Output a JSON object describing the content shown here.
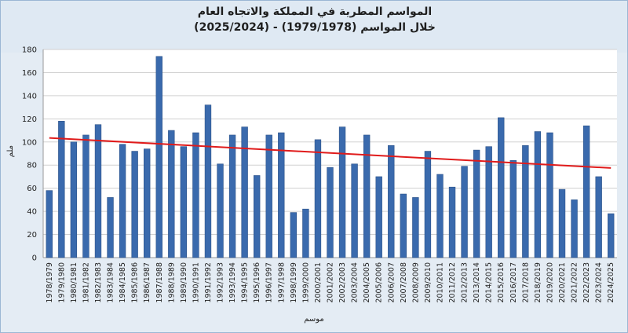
{
  "chart_data": {
    "type": "bar",
    "title": "المواسم المطرية في المملكة والاتجاه العام",
    "subtitle": "خلال المواسم (1979/1978) - (2025/2024)",
    "xlabel": "موسم",
    "ylabel": "ملم",
    "ylim": [
      0,
      180
    ],
    "yticks": [
      0,
      20,
      40,
      60,
      80,
      100,
      120,
      140,
      160,
      180
    ],
    "grid": true,
    "legend": "none",
    "colors": {
      "bar": "#3a6aad",
      "trend": "#e01b1b",
      "plot_bg": "#ffffff",
      "grid": "#d0d0d0"
    },
    "trend": {
      "start": 103.5,
      "end": 77.5
    },
    "categories": [
      "1978/1979",
      "1979/1980",
      "1980/1981",
      "1981/1982",
      "1982/1983",
      "1983/1984",
      "1984/1985",
      "1985/1986",
      "1986/1987",
      "1987/1988",
      "1988/1989",
      "1989/1990",
      "1990/1991",
      "1991/1992",
      "1992/1993",
      "1993/1994",
      "1994/1995",
      "1995/1996",
      "1996/1997",
      "1997/1998",
      "1998/1999",
      "1999/2000",
      "2000/2001",
      "2001/2002",
      "2002/2003",
      "2003/2004",
      "2004/2005",
      "2005/2006",
      "2006/2007",
      "2007/2008",
      "2008/2009",
      "2009/2010",
      "2010/2011",
      "2011/2012",
      "2012/2013",
      "2013/2014",
      "2014/2015",
      "2015/2016",
      "2016/2017",
      "2017/2018",
      "2018/2019",
      "2019/2020",
      "2020/2021",
      "2021/2022",
      "2022/2023",
      "2023/2024",
      "2024/2025"
    ],
    "values": [
      58,
      118,
      100,
      106,
      115,
      52,
      98,
      92,
      94,
      174,
      110,
      96,
      108,
      132,
      81,
      106,
      113,
      71,
      106,
      108,
      39,
      42,
      102,
      78,
      113,
      81,
      106,
      70,
      97,
      55,
      52,
      92,
      72,
      61,
      79,
      93,
      96,
      121,
      84,
      97,
      109,
      108,
      59,
      50,
      114,
      70,
      38
    ]
  }
}
